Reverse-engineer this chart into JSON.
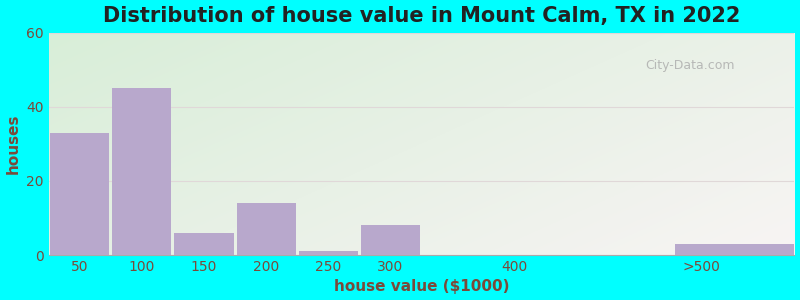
{
  "title": "Distribution of house value in Mount Calm, TX in 2022",
  "xlabel": "house value ($1000)",
  "ylabel": "houses",
  "bar_labels": [
    "50",
    "100",
    "150",
    "200",
    "250",
    "300",
    "400",
    ">500"
  ],
  "bar_values": [
    33,
    45,
    6,
    14,
    1,
    8,
    0,
    3
  ],
  "bar_color": "#b8a8cc",
  "background_outer": "#00FFFF",
  "ylim": [
    0,
    60
  ],
  "yticks": [
    0,
    20,
    40,
    60
  ],
  "title_fontsize": 15,
  "axis_label_fontsize": 11,
  "tick_fontsize": 10,
  "title_color": "#222222",
  "label_color": "#7a4a3a",
  "tick_color": "#7a4a3a",
  "grid_color": "#e0d8d8",
  "watermark": "City-Data.com"
}
